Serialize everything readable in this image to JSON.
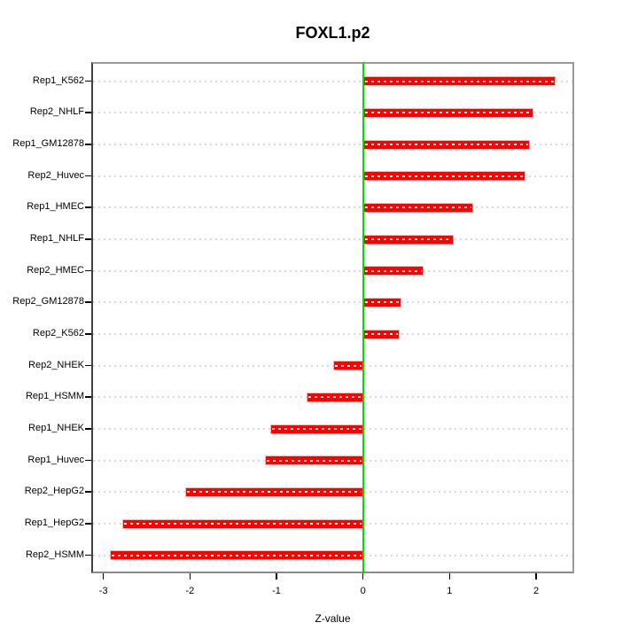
{
  "title": "FOXL1.p2",
  "chart_data": {
    "type": "bar",
    "orientation": "horizontal",
    "title": "FOXL1.p2",
    "xlabel": "Z-value",
    "categories": [
      "Rep1_K562",
      "Rep2_NHLF",
      "Rep1_GM12878",
      "Rep2_Huvec",
      "Rep1_HMEC",
      "Rep1_NHLF",
      "Rep2_HMEC",
      "Rep2_GM12878",
      "Rep2_K562",
      "Rep2_NHEK",
      "Rep1_HSMM",
      "Rep1_NHEK",
      "Rep1_Huvec",
      "Rep2_HepG2",
      "Rep1_HepG2",
      "Rep2_HSMM"
    ],
    "values": [
      2.23,
      1.97,
      1.93,
      1.88,
      1.27,
      1.05,
      0.7,
      0.44,
      0.42,
      -0.35,
      -0.65,
      -1.07,
      -1.13,
      -2.05,
      -2.78,
      -2.93
    ],
    "xticks": [
      -3,
      -2,
      -1,
      0,
      1,
      2
    ],
    "xlim": [
      -3.14,
      2.44
    ],
    "grid": true,
    "bar_color": "#ff0000",
    "bar_border_color": "#ffb4b4",
    "zero_line_color": "#00dd00",
    "grid_color": "#d9d9d9",
    "box_color": "#9a9a9a"
  }
}
